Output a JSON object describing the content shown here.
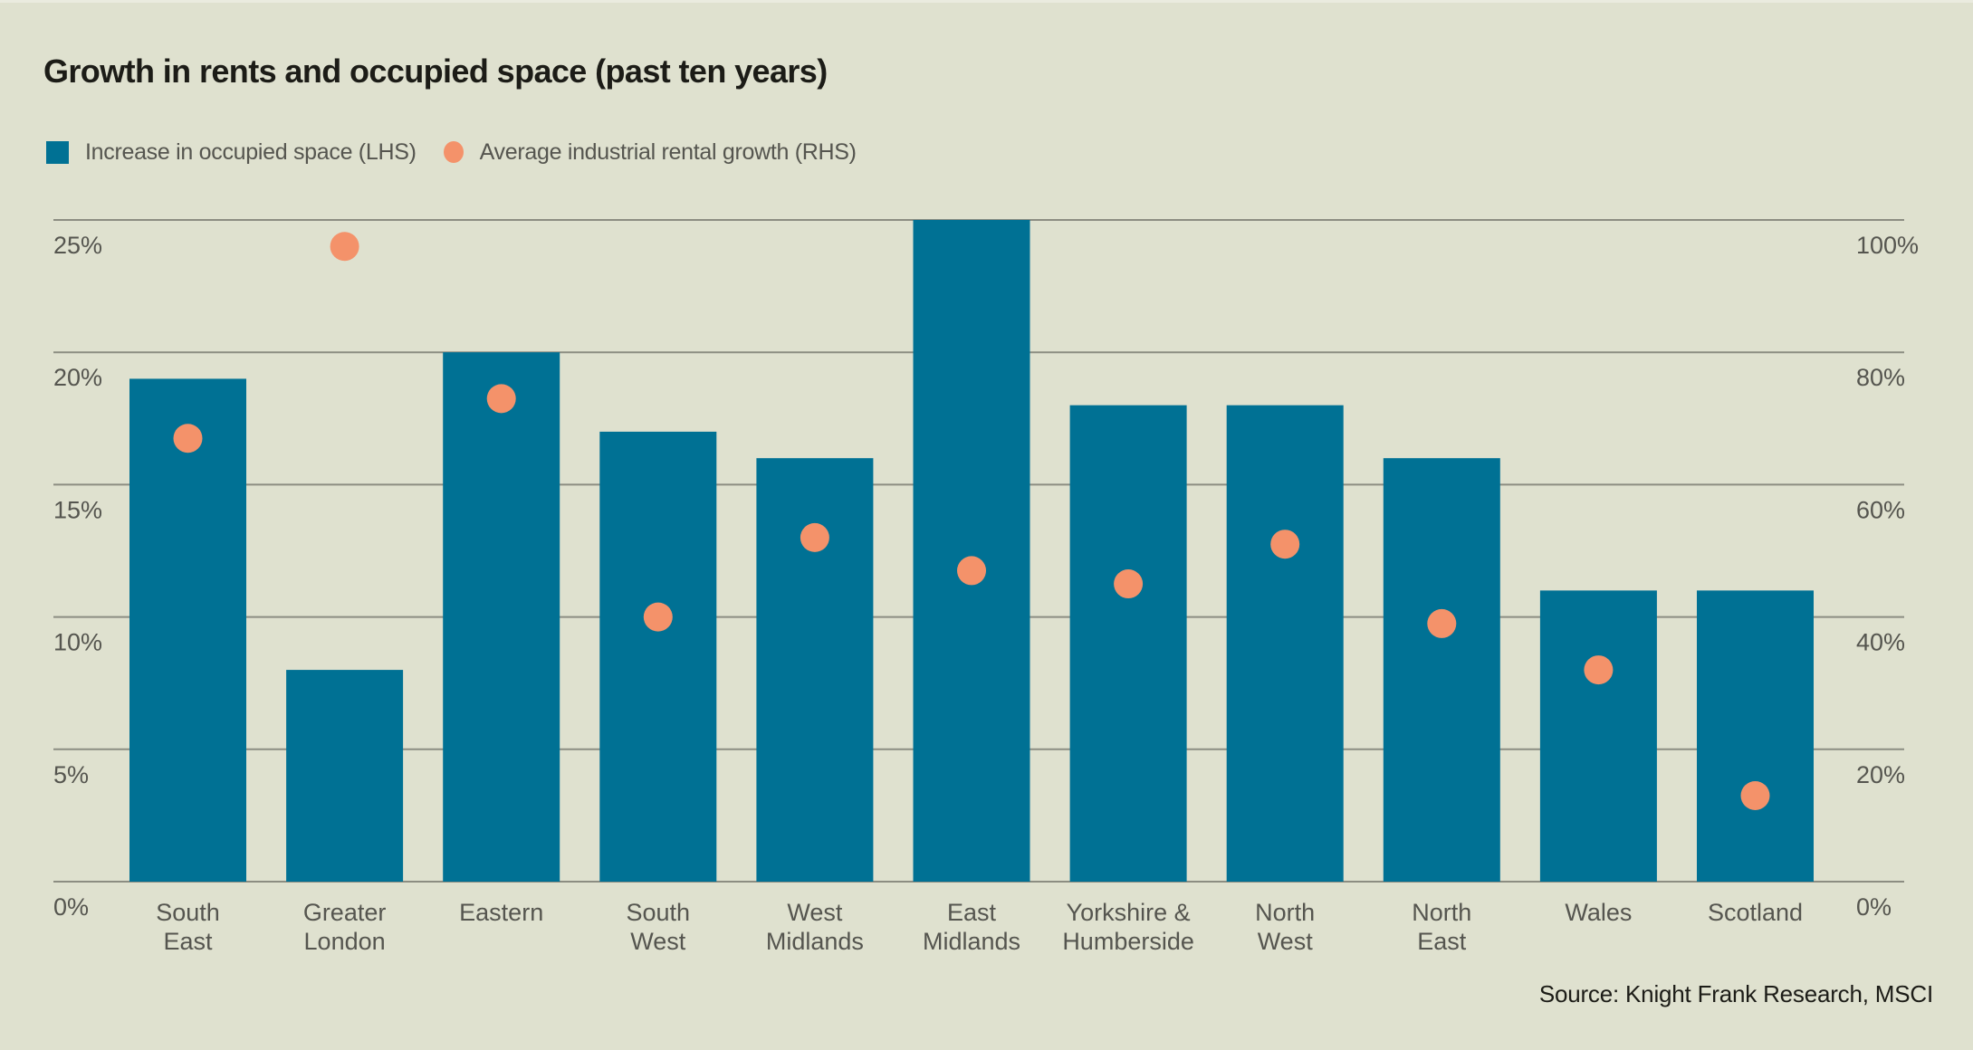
{
  "colors": {
    "background": "#dfe1cf",
    "bar": "#007194",
    "dot": "#f4926a",
    "grid": "#8c8d82",
    "text": "#55554f",
    "title": "#1c1c17"
  },
  "chart_data": {
    "type": "bar",
    "title": "Growth in rents and occupied space (past ten years)",
    "categories": [
      [
        "South",
        "East"
      ],
      [
        "Greater",
        "London"
      ],
      [
        "Eastern"
      ],
      [
        "South",
        "West"
      ],
      [
        "West",
        "Midlands"
      ],
      [
        "East",
        "Midlands"
      ],
      [
        "Yorkshire &",
        "Humberside"
      ],
      [
        "North",
        "West"
      ],
      [
        "North",
        "East"
      ],
      [
        "Wales"
      ],
      [
        "Scotland"
      ]
    ],
    "series": [
      {
        "name": "Increase in occupied space (LHS)",
        "type": "bar",
        "axis": "left",
        "values": [
          19,
          8,
          20,
          17,
          16,
          25,
          18,
          18,
          16,
          11,
          11
        ]
      },
      {
        "name": "Average industrial rental growth (RHS)",
        "type": "scatter",
        "axis": "right",
        "values": [
          67,
          96,
          73,
          40,
          52,
          47,
          45,
          51,
          39,
          32,
          13
        ]
      }
    ],
    "left_axis": {
      "range": [
        0,
        25
      ],
      "ticks": [
        0,
        5,
        10,
        15,
        20,
        25
      ],
      "tick_labels": [
        "0%",
        "5%",
        "10%",
        "15%",
        "20%",
        "25%"
      ]
    },
    "right_axis": {
      "range": [
        0,
        100
      ],
      "ticks": [
        0,
        20,
        40,
        60,
        80,
        100
      ],
      "tick_labels": [
        "0%",
        "20%",
        "40%",
        "60%",
        "80%",
        "100%"
      ]
    },
    "grid": true,
    "legend_position": "top-left",
    "source": "Source: Knight Frank Research, MSCI"
  },
  "legend": [
    {
      "label": "Increase in occupied space (LHS)",
      "shape": "square"
    },
    {
      "label": "Average industrial rental growth (RHS)",
      "shape": "circle"
    }
  ]
}
